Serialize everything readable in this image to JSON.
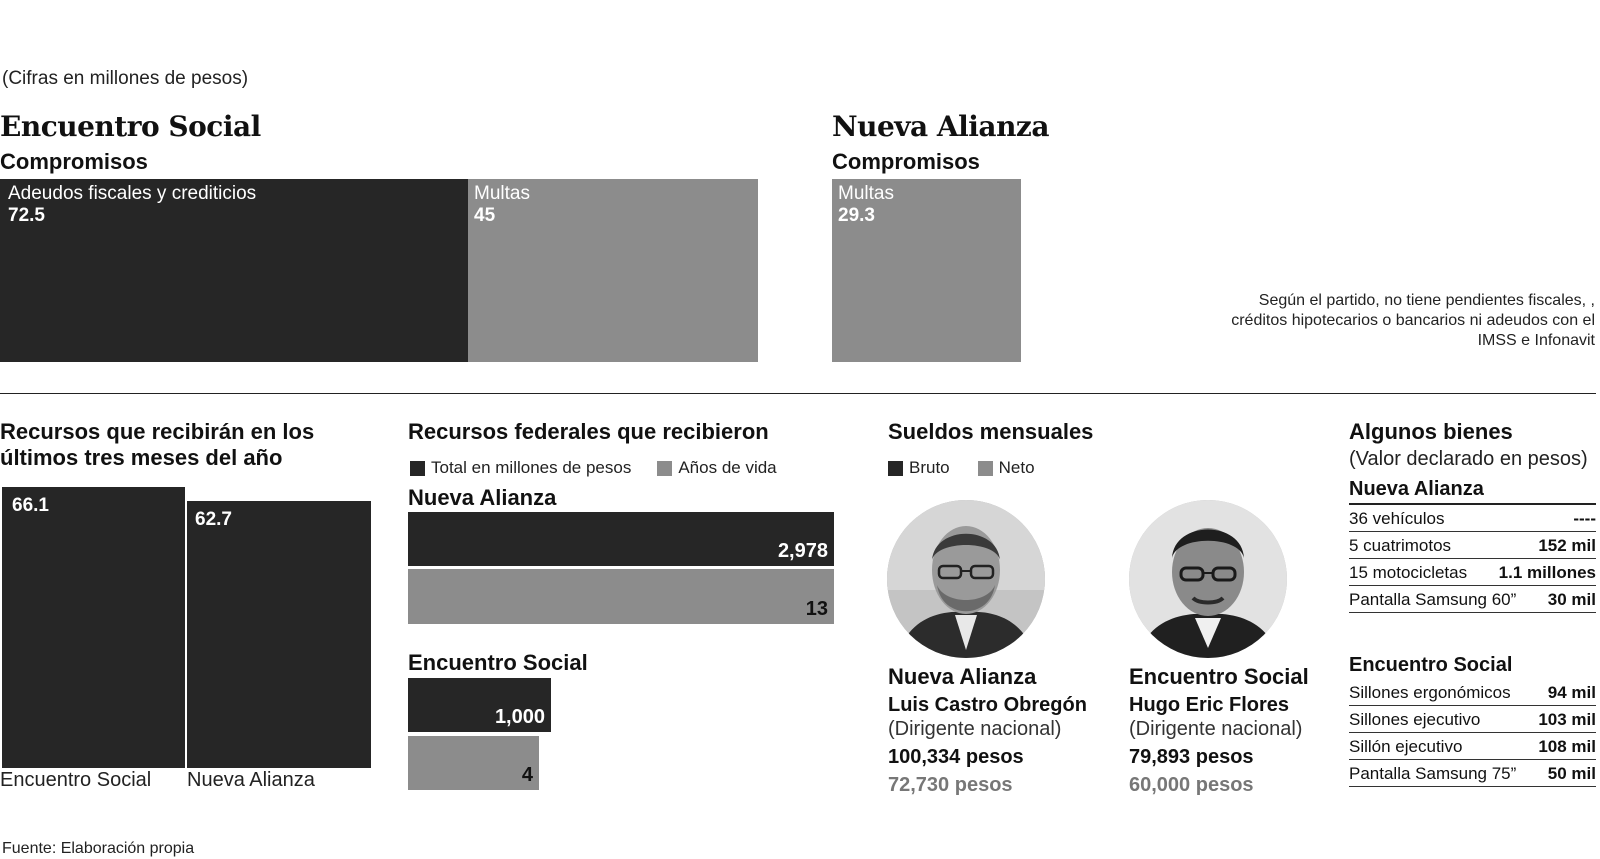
{
  "note": "(Cifras en millones de pesos)",
  "top": {
    "es": {
      "title": "Encuentro Social",
      "subtitle": "Compromisos",
      "items": [
        {
          "label": "Adeudos fiscales y crediticios",
          "value": "72.5"
        },
        {
          "label": "Multas",
          "value": "45"
        }
      ]
    },
    "na": {
      "title": "Nueva Alianza",
      "subtitle": "Compromisos",
      "items": [
        {
          "label": "Multas",
          "value": "29.3"
        }
      ],
      "remark": "Según el partido, no tiene pendientes fiscales, , créditos hipotecarios o bancarios ni adeudos con el IMSS e Infonavit"
    }
  },
  "recursos": {
    "title": "Recursos que recibirán en los últimos tres meses del año",
    "bars": [
      {
        "label": "Encuentro Social",
        "value": "66.1"
      },
      {
        "label": "Nueva Alianza",
        "value": "62.7"
      }
    ]
  },
  "federales": {
    "title": "Recursos federales que recibieron",
    "legend": [
      "Total en millones de pesos",
      "Años de vida"
    ],
    "groups": [
      {
        "name": "Nueva Alianza",
        "total": "2,978",
        "years": "13"
      },
      {
        "name": "Encuentro Social",
        "total": "1,000",
        "years": "4"
      }
    ]
  },
  "sueldos": {
    "title": "Sueldos mensuales",
    "legend": [
      "Bruto",
      "Neto"
    ],
    "people": [
      {
        "party": "Nueva Alianza",
        "name": "Luis Castro Obregón",
        "role": "(Dirigente nacional)",
        "gross": "100,334 pesos",
        "net": "72,730 pesos"
      },
      {
        "party": "Encuentro Social",
        "name": "Hugo Eric Flores",
        "role": "(Dirigente nacional)",
        "gross": "79,893 pesos",
        "net": "60,000 pesos"
      }
    ]
  },
  "bienes": {
    "title": "Algunos bienes",
    "subtitle": "(Valor declarado en pesos)",
    "na": {
      "name": "Nueva Alianza",
      "rows": [
        {
          "item": "36 vehículos",
          "value": "----"
        },
        {
          "item": "5 cuatrimotos",
          "value": "152 mil"
        },
        {
          "item": "15 motocicletas",
          "value": "1.1 millones"
        },
        {
          "item": "Pantalla Samsung 60”",
          "value": "30 mil"
        }
      ]
    },
    "es": {
      "name": "Encuentro Social",
      "rows": [
        {
          "item": "Sillones ergonómicos",
          "value": "94 mil"
        },
        {
          "item": "Sillones ejecutivo",
          "value": "103 mil"
        },
        {
          "item": "Sillón ejecutivo",
          "value": "108 mil"
        },
        {
          "item": "Pantalla Samsung 75”",
          "value": "50 mil"
        }
      ]
    }
  },
  "source": "Fuente: Elaboración propia",
  "chart_data": [
    {
      "type": "bar",
      "title": "Encuentro Social — Compromisos",
      "categories": [
        "Adeudos fiscales y crediticios",
        "Multas"
      ],
      "values": [
        72.5,
        45
      ]
    },
    {
      "type": "bar",
      "title": "Nueva Alianza — Compromisos",
      "categories": [
        "Multas"
      ],
      "values": [
        29.3
      ]
    },
    {
      "type": "bar",
      "title": "Recursos que recibirán en los últimos tres meses del año",
      "categories": [
        "Encuentro Social",
        "Nueva Alianza"
      ],
      "values": [
        66.1,
        62.7
      ]
    },
    {
      "type": "bar",
      "title": "Recursos federales que recibieron",
      "categories": [
        "Nueva Alianza",
        "Encuentro Social"
      ],
      "series": [
        {
          "name": "Total en millones de pesos",
          "values": [
            2978,
            1000
          ]
        },
        {
          "name": "Años de vida",
          "values": [
            13,
            4
          ]
        }
      ]
    }
  ]
}
